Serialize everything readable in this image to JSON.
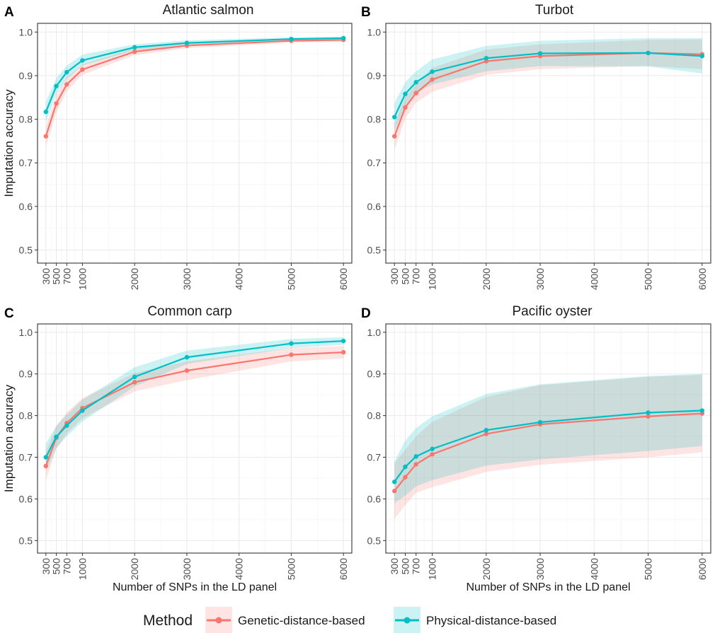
{
  "colors": {
    "genetic": "#F8766D",
    "physical": "#00BFC4",
    "panel_bg": "#ffffff",
    "grid_major": "#ebebeb",
    "grid_minor": "#f5f5f5",
    "border": "#333333",
    "text": "#1a1a1a",
    "tick_text": "#4d4d4d"
  },
  "legend": {
    "title": "Method",
    "entries": [
      "Genetic-distance-based",
      "Physical-distance-based"
    ]
  },
  "chart_data": [
    {
      "panel": "A",
      "type": "line",
      "title": "Atlantic salmon",
      "ylabel": "Imputation accuracy",
      "xlabel": "",
      "ylim": [
        0.47,
        1.02
      ],
      "xlim": [
        140,
        6160
      ],
      "yticks": [
        "0.5",
        "0.6",
        "0.7",
        "0.8",
        "0.9",
        "1.0"
      ],
      "xticks": [
        "300",
        "500",
        "700",
        "1000",
        "2000",
        "3000",
        "4000",
        "5000",
        "6000"
      ],
      "x": [
        300,
        500,
        700,
        1000,
        2000,
        3000,
        5000,
        6000
      ],
      "series": [
        {
          "name": "Genetic-distance-based",
          "values": [
            0.761,
            0.836,
            0.88,
            0.914,
            0.955,
            0.969,
            0.98,
            0.982
          ],
          "lower": [
            0.738,
            0.815,
            0.864,
            0.902,
            0.947,
            0.963,
            0.976,
            0.978
          ],
          "upper": [
            0.784,
            0.856,
            0.896,
            0.926,
            0.963,
            0.975,
            0.984,
            0.986
          ]
        },
        {
          "name": "Physical-distance-based",
          "values": [
            0.817,
            0.876,
            0.908,
            0.935,
            0.965,
            0.975,
            0.984,
            0.986
          ],
          "lower": [
            0.793,
            0.858,
            0.893,
            0.923,
            0.958,
            0.969,
            0.98,
            0.982
          ],
          "upper": [
            0.84,
            0.894,
            0.923,
            0.948,
            0.972,
            0.981,
            0.988,
            0.99
          ]
        }
      ]
    },
    {
      "panel": "B",
      "type": "line",
      "title": "Turbot",
      "ylabel": "",
      "xlabel": "",
      "ylim": [
        0.47,
        1.02
      ],
      "xlim": [
        140,
        6160
      ],
      "yticks": [
        "0.5",
        "0.6",
        "0.7",
        "0.8",
        "0.9",
        "1.0"
      ],
      "xticks": [
        "300",
        "500",
        "700",
        "1000",
        "2000",
        "3000",
        "4000",
        "5000",
        "6000"
      ],
      "x": [
        300,
        500,
        700,
        1000,
        2000,
        3000,
        5000,
        6000
      ],
      "series": [
        {
          "name": "Genetic-distance-based",
          "values": [
            0.761,
            0.827,
            0.86,
            0.891,
            0.933,
            0.945,
            0.952,
            0.949
          ],
          "lower": [
            0.73,
            0.802,
            0.838,
            0.863,
            0.902,
            0.915,
            0.922,
            0.915
          ],
          "upper": [
            0.79,
            0.85,
            0.881,
            0.918,
            0.96,
            0.972,
            0.982,
            0.983
          ]
        },
        {
          "name": "Physical-distance-based",
          "values": [
            0.805,
            0.858,
            0.885,
            0.909,
            0.94,
            0.951,
            0.952,
            0.945
          ],
          "lower": [
            0.773,
            0.83,
            0.86,
            0.88,
            0.91,
            0.922,
            0.921,
            0.905
          ],
          "upper": [
            0.837,
            0.885,
            0.91,
            0.937,
            0.968,
            0.98,
            0.986,
            0.986
          ]
        }
      ]
    },
    {
      "panel": "C",
      "type": "line",
      "title": "Common carp",
      "ylabel": "Imputation accuracy",
      "xlabel": "Number of SNPs in the LD panel",
      "ylim": [
        0.47,
        1.02
      ],
      "xlim": [
        140,
        6160
      ],
      "yticks": [
        "0.5",
        "0.6",
        "0.7",
        "0.8",
        "0.9",
        "1.0"
      ],
      "xticks": [
        "300",
        "500",
        "700",
        "1000",
        "2000",
        "3000",
        "4000",
        "5000",
        "6000"
      ],
      "x": [
        300,
        500,
        700,
        1000,
        2000,
        3000,
        5000,
        6000
      ],
      "series": [
        {
          "name": "Genetic-distance-based",
          "values": [
            0.679,
            0.747,
            0.782,
            0.818,
            0.88,
            0.908,
            0.946,
            0.952
          ],
          "lower": [
            0.645,
            0.72,
            0.757,
            0.794,
            0.858,
            0.885,
            0.93,
            0.937
          ],
          "upper": [
            0.713,
            0.774,
            0.808,
            0.842,
            0.902,
            0.93,
            0.962,
            0.967
          ]
        },
        {
          "name": "Physical-distance-based",
          "values": [
            0.7,
            0.749,
            0.776,
            0.812,
            0.893,
            0.94,
            0.973,
            0.979
          ],
          "lower": [
            0.667,
            0.722,
            0.75,
            0.786,
            0.87,
            0.924,
            0.962,
            0.97
          ],
          "upper": [
            0.733,
            0.776,
            0.802,
            0.838,
            0.916,
            0.956,
            0.984,
            0.988
          ]
        }
      ]
    },
    {
      "panel": "D",
      "type": "line",
      "title": "Pacific oyster",
      "ylabel": "",
      "xlabel": "Number of SNPs in the LD panel",
      "ylim": [
        0.47,
        1.02
      ],
      "xlim": [
        140,
        6160
      ],
      "yticks": [
        "0.5",
        "0.6",
        "0.7",
        "0.8",
        "0.9",
        "1.0"
      ],
      "xticks": [
        "300",
        "500",
        "700",
        "1000",
        "2000",
        "3000",
        "4000",
        "5000",
        "6000"
      ],
      "x": [
        300,
        500,
        700,
        1000,
        2000,
        3000,
        5000,
        6000
      ],
      "series": [
        {
          "name": "Genetic-distance-based",
          "values": [
            0.619,
            0.652,
            0.683,
            0.707,
            0.756,
            0.779,
            0.798,
            0.805
          ],
          "lower": [
            0.552,
            0.585,
            0.615,
            0.628,
            0.665,
            0.682,
            0.7,
            0.712
          ],
          "upper": [
            0.685,
            0.718,
            0.75,
            0.785,
            0.845,
            0.873,
            0.893,
            0.898
          ]
        },
        {
          "name": "Physical-distance-based",
          "values": [
            0.641,
            0.677,
            0.702,
            0.72,
            0.765,
            0.784,
            0.807,
            0.812
          ],
          "lower": [
            0.59,
            0.608,
            0.63,
            0.645,
            0.68,
            0.695,
            0.715,
            0.727
          ],
          "upper": [
            0.69,
            0.74,
            0.77,
            0.798,
            0.852,
            0.875,
            0.895,
            0.9
          ]
        }
      ]
    }
  ]
}
